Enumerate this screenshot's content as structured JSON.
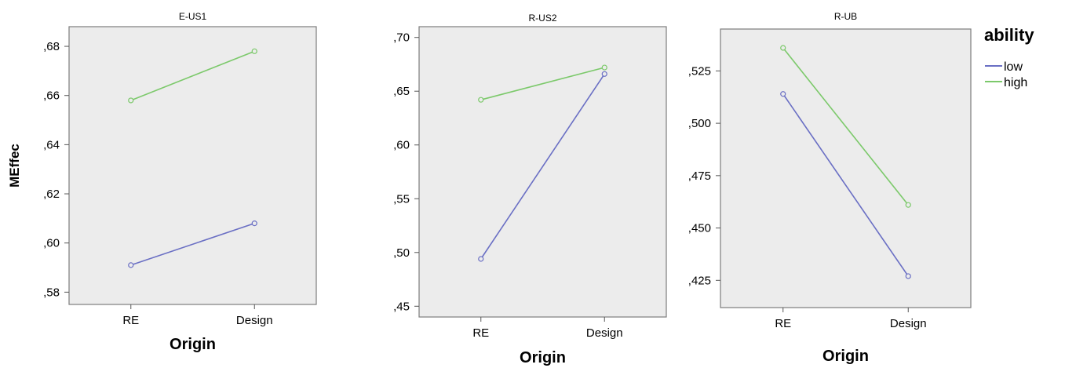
{
  "chart_data": [
    {
      "type": "line",
      "title": "E-US1",
      "xlabel": "Origin",
      "ylabel": "MEffec",
      "categories": [
        "RE",
        "Design"
      ],
      "ylim": [
        0.575,
        0.688
      ],
      "yticks": [
        0.58,
        0.6,
        0.62,
        0.64,
        0.66,
        0.68
      ],
      "ytick_labels": [
        ",58",
        ",60",
        ",62",
        ",64",
        ",66",
        ",68"
      ],
      "series": [
        {
          "name": "low",
          "color": "#6a6fc4",
          "values": [
            0.591,
            0.608
          ]
        },
        {
          "name": "high",
          "color": "#7cc96b",
          "values": [
            0.658,
            0.678
          ]
        }
      ],
      "grid": false
    },
    {
      "type": "line",
      "title": "R-US2",
      "xlabel": "Origin",
      "ylabel": "",
      "categories": [
        "RE",
        "Design"
      ],
      "ylim": [
        0.44,
        0.71
      ],
      "yticks": [
        0.45,
        0.5,
        0.55,
        0.6,
        0.65,
        0.7
      ],
      "ytick_labels": [
        ",45",
        ",50",
        ",55",
        ",60",
        ",65",
        ",70"
      ],
      "series": [
        {
          "name": "low",
          "color": "#6a6fc4",
          "values": [
            0.494,
            0.666
          ]
        },
        {
          "name": "high",
          "color": "#7cc96b",
          "values": [
            0.642,
            0.672
          ]
        }
      ],
      "grid": false
    },
    {
      "type": "line",
      "title": "R-UB",
      "xlabel": "Origin",
      "ylabel": "",
      "categories": [
        "RE",
        "Design"
      ],
      "ylim": [
        0.412,
        0.545
      ],
      "yticks": [
        0.425,
        0.45,
        0.475,
        0.5,
        0.525
      ],
      "ytick_labels": [
        ",425",
        ",450",
        ",475",
        ",500",
        ",525"
      ],
      "series": [
        {
          "name": "low",
          "color": "#6a6fc4",
          "values": [
            0.514,
            0.427
          ]
        },
        {
          "name": "high",
          "color": "#7cc96b",
          "values": [
            0.536,
            0.461
          ]
        }
      ],
      "grid": false
    }
  ],
  "legend": {
    "title": "ability",
    "placement": "right",
    "items": [
      {
        "label": "low",
        "color": "#6a6fc4"
      },
      {
        "label": "high",
        "color": "#7cc96b"
      }
    ]
  }
}
